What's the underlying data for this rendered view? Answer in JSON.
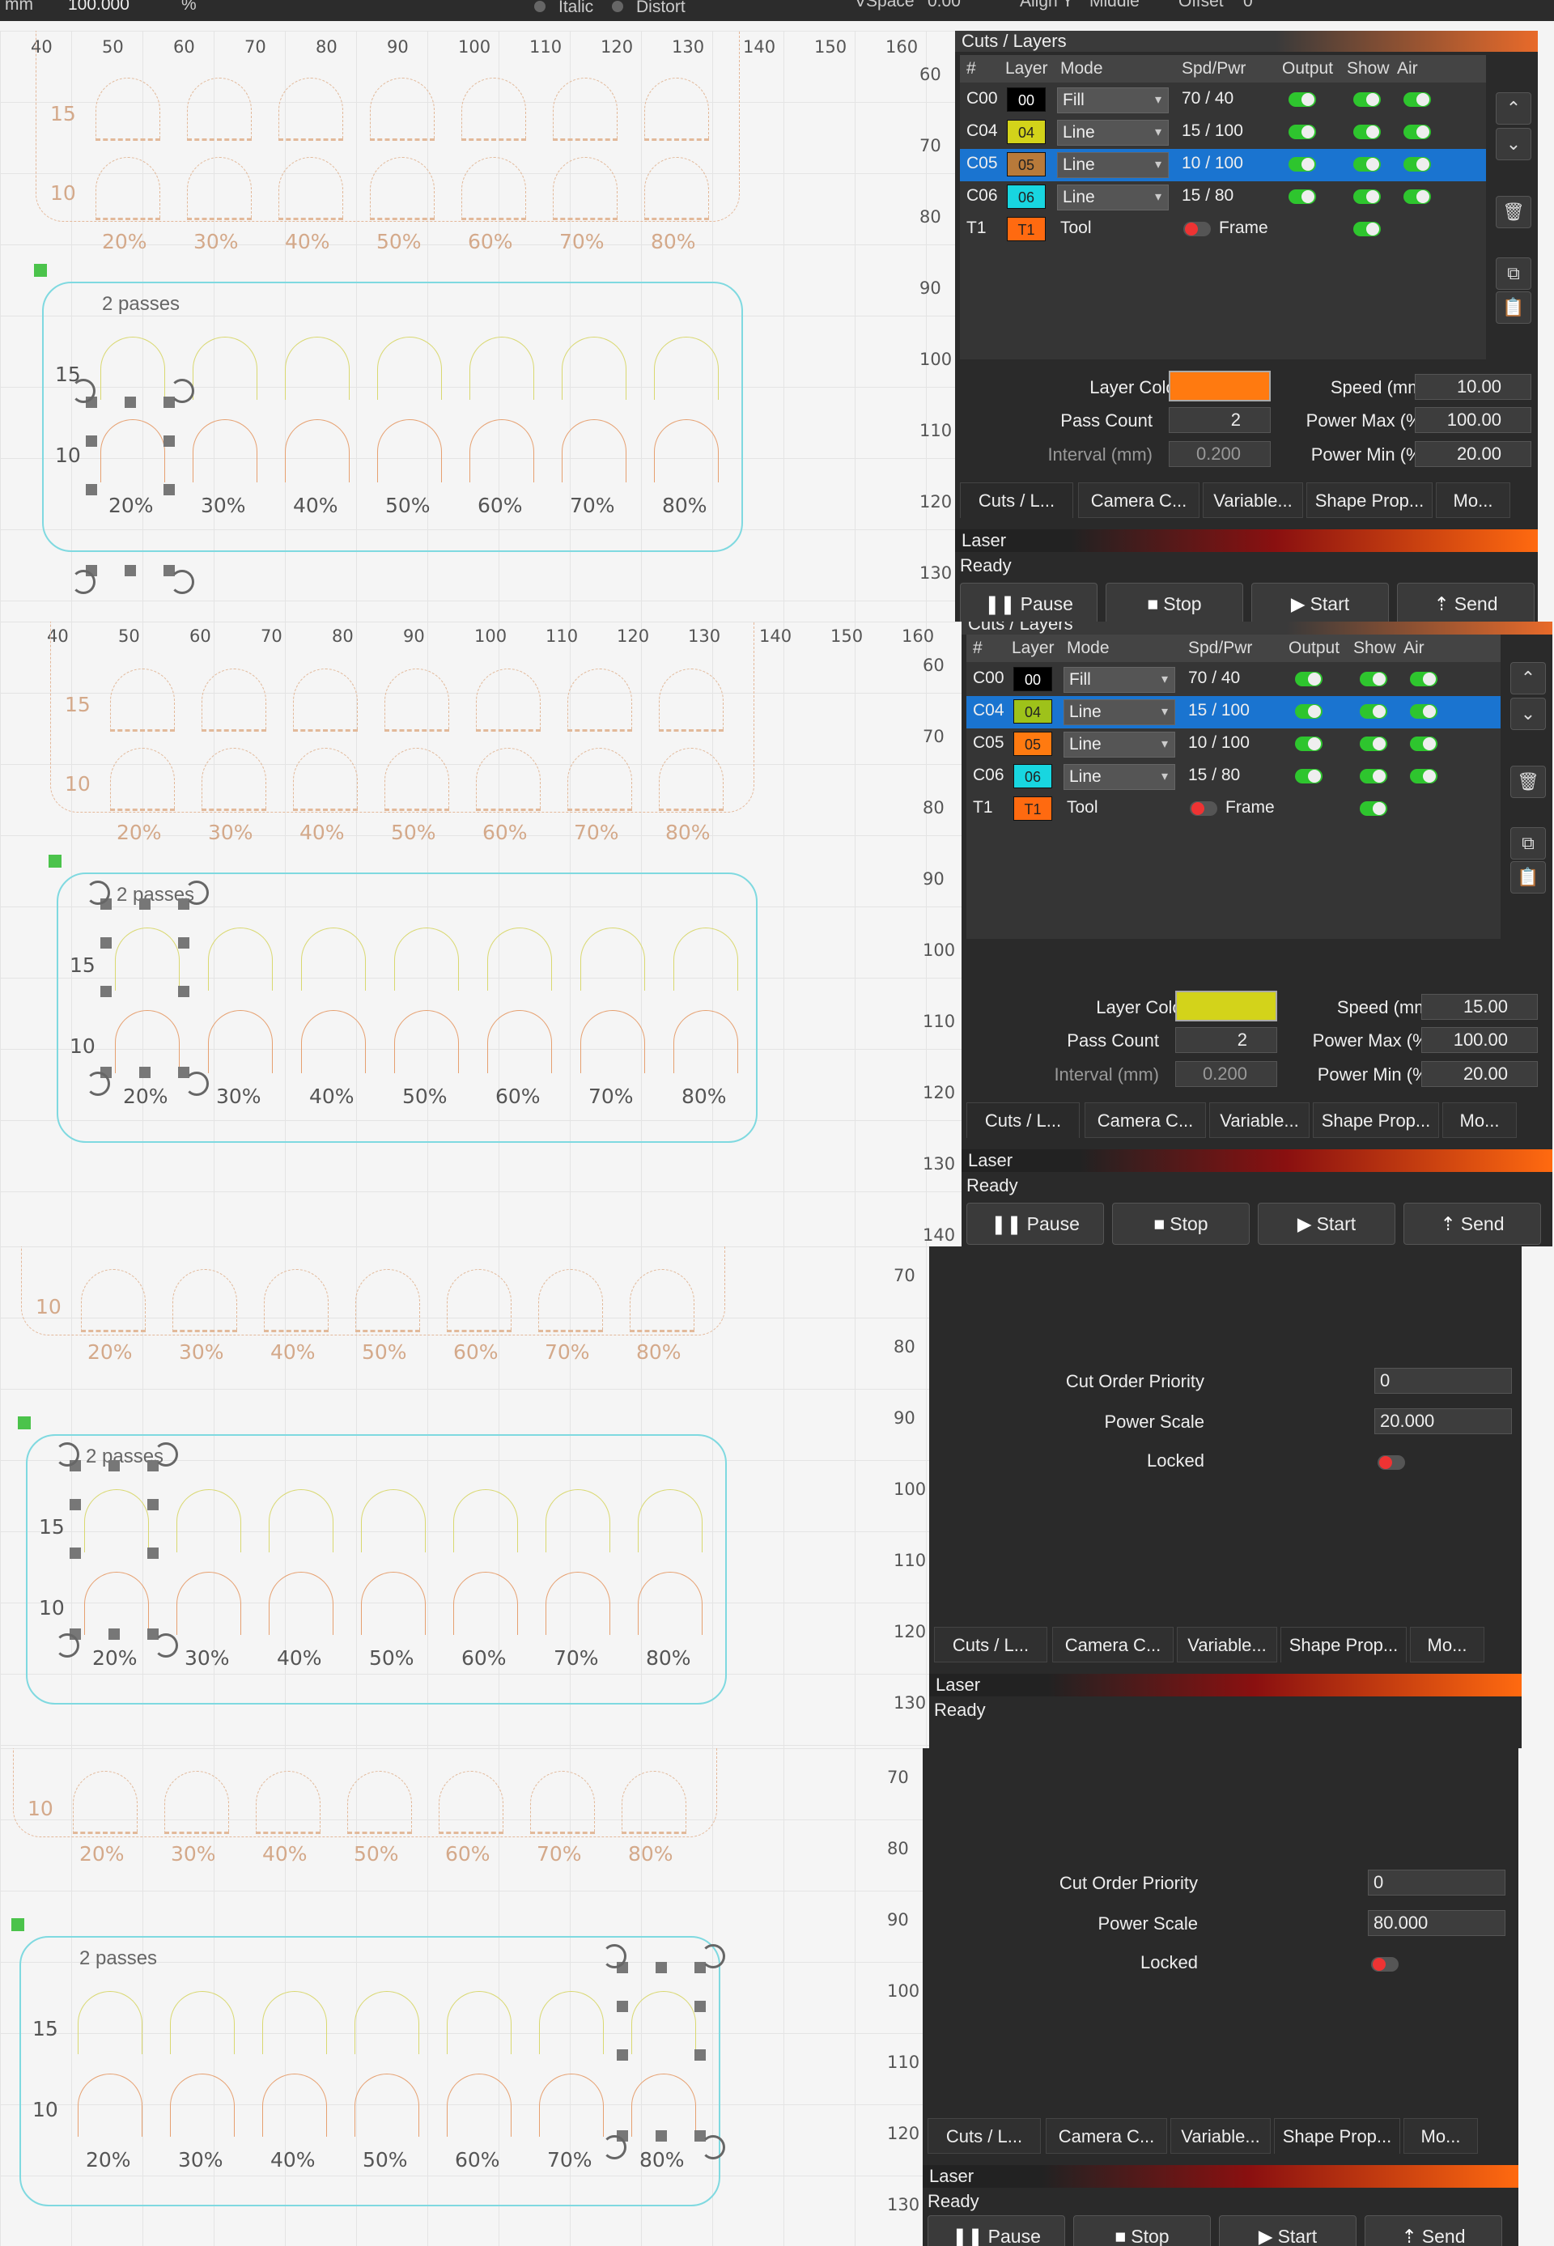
{
  "toolbar": {
    "unit": "mm",
    "value": "100.000",
    "pct_symbol": "%",
    "italic": "Italic",
    "distort": "Distort",
    "vspace_label": "VSpace",
    "vspace": "0.00",
    "align_label": "Align Y",
    "align": "Middle",
    "offset_label": "Offset",
    "offset": "0"
  },
  "ruler": {
    "top": [
      "40",
      "50",
      "60",
      "70",
      "80",
      "90",
      "100",
      "110",
      "120",
      "130",
      "140",
      "150",
      "160"
    ],
    "right_a": [
      "60",
      "70",
      "80",
      "90",
      "100",
      "110",
      "120",
      "130"
    ],
    "right_b": [
      "60",
      "70",
      "80",
      "90",
      "100",
      "110",
      "120",
      "130",
      "140"
    ],
    "right_c": [
      "70",
      "80",
      "90",
      "100",
      "110",
      "120",
      "130"
    ],
    "right_d": [
      "70",
      "80",
      "90",
      "100",
      "110",
      "120",
      "130"
    ]
  },
  "design": {
    "passes": "2 passes",
    "row_top": "15",
    "row_bottom": "10",
    "percents": [
      "20%",
      "30%",
      "40%",
      "50%",
      "60%",
      "70%",
      "80%"
    ]
  },
  "cuts_panel": {
    "title": "Cuts / Layers",
    "headers": [
      "#",
      "Layer",
      "Mode",
      "Spd/Pwr",
      "Output",
      "Show",
      "Air"
    ],
    "tool_mode": "Tool",
    "frame": "Frame"
  },
  "panel1": {
    "rows": [
      {
        "id": "C00",
        "layer": "00",
        "color": "#000000",
        "tcolor": "#ffffff",
        "mode": "Fill",
        "sp": "70 / 40",
        "sel": false
      },
      {
        "id": "C04",
        "layer": "04",
        "color": "#d3d31a",
        "tcolor": "#222222",
        "mode": "Line",
        "sp": "15 / 100",
        "sel": false
      },
      {
        "id": "C05",
        "layer": "05",
        "color": "#b87a3a",
        "tcolor": "#222222",
        "mode": "Line",
        "sp": "10 / 100",
        "sel": true
      },
      {
        "id": "C06",
        "layer": "06",
        "color": "#18d6e0",
        "tcolor": "#222222",
        "mode": "Line",
        "sp": "15 / 80",
        "sel": false
      }
    ],
    "tool": {
      "id": "T1",
      "layer": "T1",
      "color": "#ff6a10"
    },
    "layer_color": "#ff7a10",
    "speed": "10.00",
    "pass_count": "2",
    "power_max": "100.00",
    "interval": "0.200",
    "power_min": "20.00"
  },
  "panel2": {
    "rows": [
      {
        "id": "C00",
        "layer": "00",
        "color": "#000000",
        "tcolor": "#ffffff",
        "mode": "Fill",
        "sp": "70 / 40",
        "sel": false
      },
      {
        "id": "C04",
        "layer": "04",
        "color": "#9ec21a",
        "tcolor": "#222222",
        "mode": "Line",
        "sp": "15 / 100",
        "sel": true
      },
      {
        "id": "C05",
        "layer": "05",
        "color": "#ff7a10",
        "tcolor": "#222222",
        "mode": "Line",
        "sp": "10 / 100",
        "sel": false
      },
      {
        "id": "C06",
        "layer": "06",
        "color": "#18d6e0",
        "tcolor": "#222222",
        "mode": "Line",
        "sp": "15 / 80",
        "sel": false
      }
    ],
    "tool": {
      "id": "T1",
      "layer": "T1",
      "color": "#ff6a10"
    },
    "layer_color": "#d3d31a",
    "speed": "15.00",
    "pass_count": "2",
    "power_max": "100.00",
    "interval": "0.200",
    "power_min": "20.00"
  },
  "labels": {
    "layer_color": "Layer Color",
    "speed": "Speed (mm/s)",
    "pass_count": "Pass Count",
    "power_max": "Power Max (%)",
    "interval": "Interval (mm)",
    "power_min": "Power Min (%)"
  },
  "shape": {
    "cut_order_label": "Cut Order Priority",
    "power_scale_label": "Power Scale",
    "locked_label": "Locked",
    "cut_order": "0",
    "power_scale_a": "20.000",
    "power_scale_b": "80.000"
  },
  "tabs": [
    "Cuts / L...",
    "Camera C...",
    "Variable...",
    "Shape Prop...",
    "Mo..."
  ],
  "laser": {
    "title": "Laser",
    "status": "Ready",
    "pause": "Pause",
    "stop": "Stop",
    "start": "Start",
    "send": "Send"
  }
}
